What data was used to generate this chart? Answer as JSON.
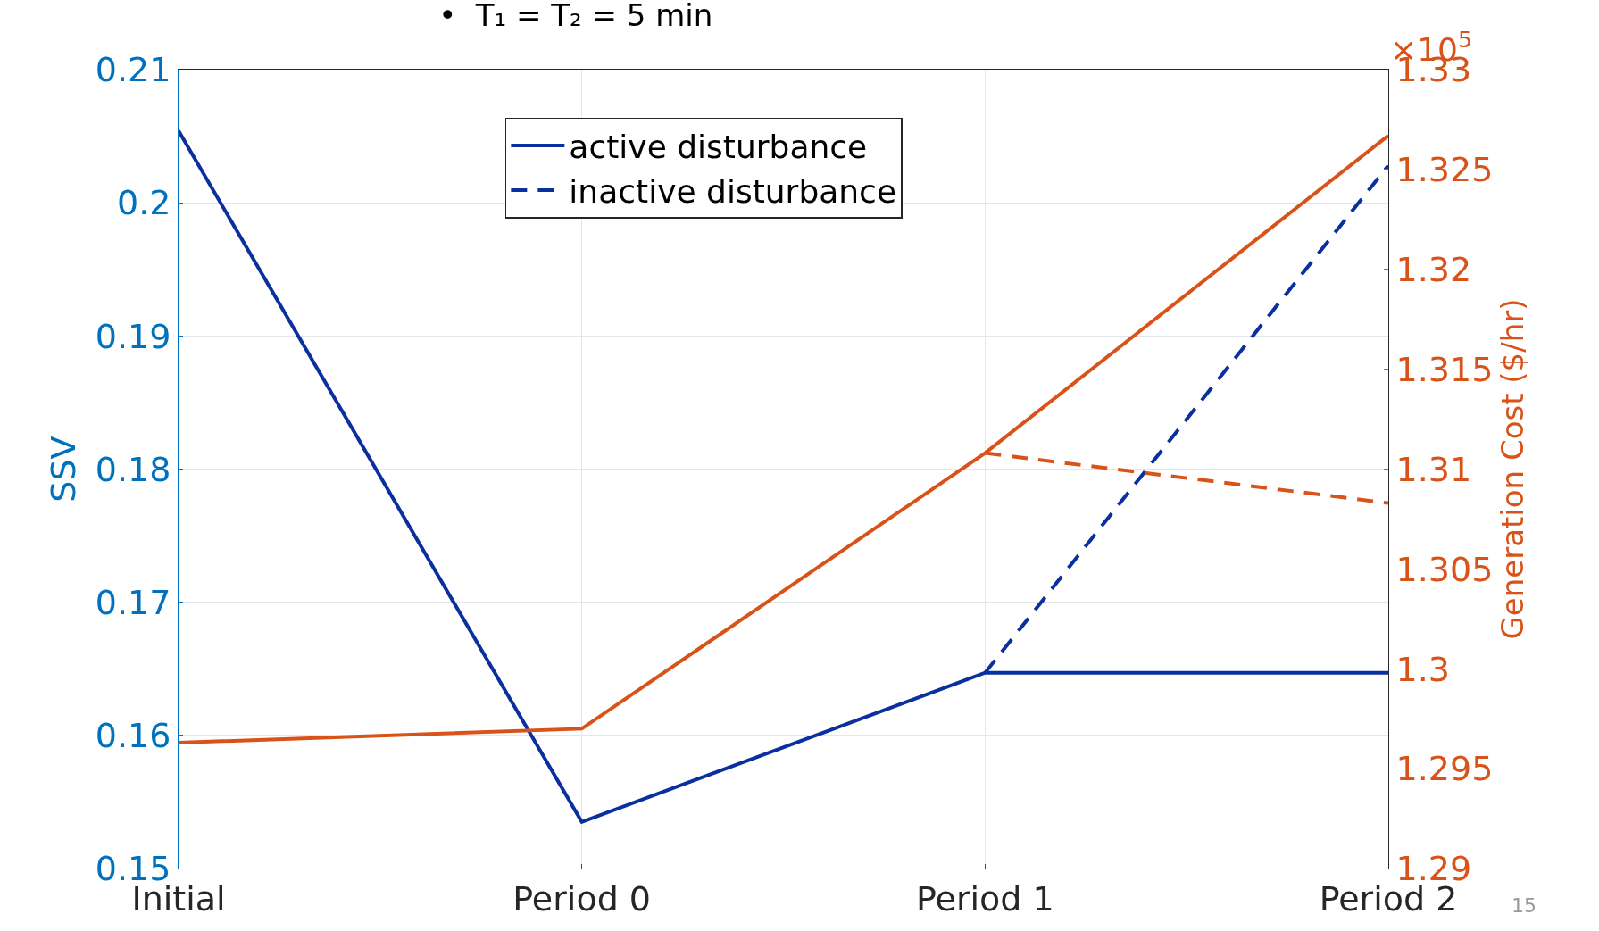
{
  "chart_data": {
    "type": "line",
    "title": "•  T₁ = T₂ = 5 min",
    "ylabel": "SSV",
    "y2label": "Generation Cost ($/hr)",
    "categories": [
      "Initial",
      "Period 0",
      "Period 1",
      "Period 2"
    ],
    "series": [
      {
        "name": "active disturbance",
        "color": "#0a2f9e",
        "line_style": "solid",
        "values": [
          0.2054,
          0.1535,
          0.1647,
          0.1647
        ]
      },
      {
        "name": "inactive disturbance",
        "color": "#0a2f9e",
        "line_style": "dashed",
        "values": [
          null,
          null,
          0.1647,
          0.2028
        ]
      },
      {
        "color": "#d95319",
        "line_style": "solid",
        "axis": "y2",
        "values": [
          1.2963,
          1.297,
          1.3108,
          1.3267
        ]
      },
      {
        "color": "#d95319",
        "line_style": "dashed",
        "axis": "y2",
        "values": [
          null,
          null,
          1.3108,
          1.3083
        ]
      }
    ],
    "ylim": [
      0.15,
      0.21
    ],
    "yticks": [
      0.15,
      0.16,
      0.17,
      0.18,
      0.19,
      0.2,
      0.21
    ],
    "y2lim": [
      1.29,
      1.33
    ],
    "y2ticks": [
      1.29,
      1.295,
      1.3,
      1.305,
      1.31,
      1.315,
      1.32,
      1.325,
      1.33
    ],
    "annotations": [
      "×10$^{5}$",
      "15"
    ],
    "grid": true,
    "legend": "top",
    "marker": "none"
  }
}
